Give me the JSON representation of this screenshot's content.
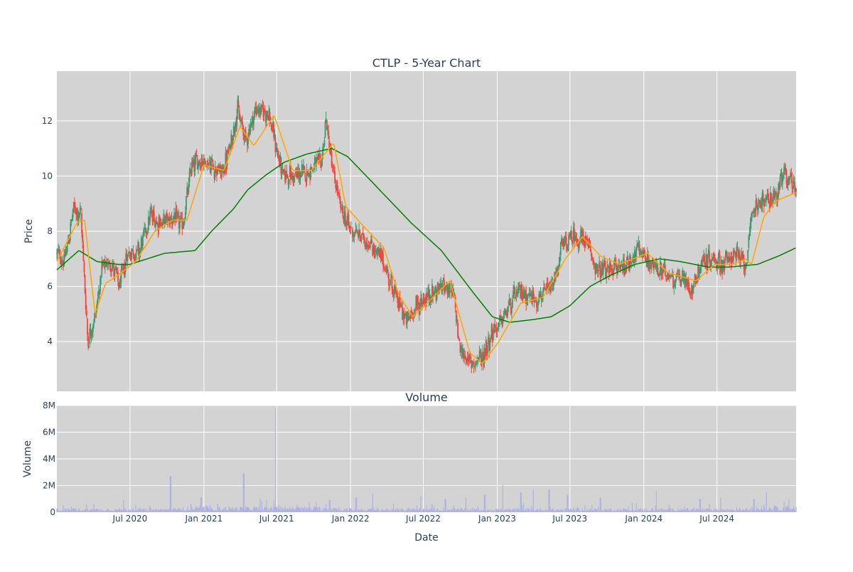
{
  "chart_data": [
    {
      "type": "candlestick",
      "title": "CTLP - 5-Year Chart",
      "ylabel": "Price",
      "ylim": [
        2.2,
        13.8
      ],
      "yticks": [
        4,
        6,
        8,
        10,
        12
      ],
      "x_range": [
        "2020-01-01",
        "2025-01-14"
      ],
      "xtick_dates": [
        "2020-07-01",
        "2021-01-01",
        "2021-07-01",
        "2022-01-01",
        "2022-07-01",
        "2023-01-01",
        "2023-07-01",
        "2024-01-01",
        "2024-07-01"
      ],
      "grid": true,
      "plot_bgcolor": "#d3d3d3",
      "colors": {
        "increasing": "#3d9970",
        "decreasing": "#ff4136",
        "ma_short": "#ffa500",
        "ma_long": "#008000"
      },
      "series_keypoints": [
        [
          "2020-01-01",
          7.2
        ],
        [
          "2020-01-20",
          6.9
        ],
        [
          "2020-02-12",
          8.8
        ],
        [
          "2020-03-01",
          8.6
        ],
        [
          "2020-03-18",
          4.0
        ],
        [
          "2020-04-05",
          4.9
        ],
        [
          "2020-04-22",
          6.6
        ],
        [
          "2020-05-15",
          6.9
        ],
        [
          "2020-06-05",
          6.0
        ],
        [
          "2020-06-25",
          7.2
        ],
        [
          "2020-07-25",
          7.3
        ],
        [
          "2020-08-20",
          8.6
        ],
        [
          "2020-09-15",
          8.3
        ],
        [
          "2020-10-15",
          8.5
        ],
        [
          "2020-11-10",
          8.2
        ],
        [
          "2020-12-01",
          10.4
        ],
        [
          "2020-12-25",
          10.6
        ],
        [
          "2021-01-20",
          10.4
        ],
        [
          "2021-02-15",
          10.1
        ],
        [
          "2021-03-05",
          10.9
        ],
        [
          "2021-03-25",
          12.4
        ],
        [
          "2021-04-15",
          11.3
        ],
        [
          "2021-05-10",
          12.4
        ],
        [
          "2021-06-10",
          12.3
        ],
        [
          "2021-07-15",
          10.1
        ],
        [
          "2021-08-10",
          10.0
        ],
        [
          "2021-09-10",
          10.1
        ],
        [
          "2021-10-20",
          10.5
        ],
        [
          "2021-11-01",
          12.0
        ],
        [
          "2021-11-20",
          10.0
        ],
        [
          "2021-12-10",
          8.7
        ],
        [
          "2021-12-31",
          8.1
        ],
        [
          "2022-02-15",
          7.6
        ],
        [
          "2022-03-20",
          7.0
        ],
        [
          "2022-04-20",
          5.8
        ],
        [
          "2022-05-20",
          4.7
        ],
        [
          "2022-06-15",
          5.3
        ],
        [
          "2022-07-20",
          5.7
        ],
        [
          "2022-08-25",
          6.1
        ],
        [
          "2022-09-15",
          5.6
        ],
        [
          "2022-10-01",
          3.7
        ],
        [
          "2022-10-25",
          3.2
        ],
        [
          "2022-11-25",
          3.4
        ],
        [
          "2022-12-15",
          4.2
        ],
        [
          "2023-01-15",
          4.8
        ],
        [
          "2023-02-10",
          5.6
        ],
        [
          "2023-03-05",
          5.8
        ],
        [
          "2023-04-10",
          5.5
        ],
        [
          "2023-05-20",
          6.0
        ],
        [
          "2023-06-10",
          7.4
        ],
        [
          "2023-07-10",
          7.8
        ],
        [
          "2023-08-10",
          7.6
        ],
        [
          "2023-09-10",
          6.5
        ],
        [
          "2023-10-10",
          6.6
        ],
        [
          "2023-11-15",
          6.8
        ],
        [
          "2023-12-20",
          7.3
        ],
        [
          "2024-01-25",
          6.7
        ],
        [
          "2024-03-01",
          6.4
        ],
        [
          "2024-04-01",
          6.3
        ],
        [
          "2024-05-01",
          5.9
        ],
        [
          "2024-05-20",
          6.8
        ],
        [
          "2024-06-15",
          7.0
        ],
        [
          "2024-07-15",
          6.8
        ],
        [
          "2024-08-15",
          7.2
        ],
        [
          "2024-09-10",
          6.8
        ],
        [
          "2024-10-01",
          8.9
        ],
        [
          "2024-10-25",
          9.1
        ],
        [
          "2024-11-25",
          9.3
        ],
        [
          "2024-12-15",
          10.1
        ],
        [
          "2025-01-14",
          9.6
        ]
      ],
      "ma_short_keypoints": [
        [
          "2020-01-01",
          6.9
        ],
        [
          "2020-02-20",
          8.3
        ],
        [
          "2020-03-10",
          8.4
        ],
        [
          "2020-04-05",
          5.0
        ],
        [
          "2020-05-01",
          6.1
        ],
        [
          "2020-06-10",
          6.5
        ],
        [
          "2020-07-15",
          6.9
        ],
        [
          "2020-09-01",
          8.0
        ],
        [
          "2020-10-15",
          8.4
        ],
        [
          "2020-11-20",
          8.4
        ],
        [
          "2021-01-01",
          10.4
        ],
        [
          "2021-02-20",
          10.2
        ],
        [
          "2021-04-01",
          11.8
        ],
        [
          "2021-05-05",
          11.1
        ],
        [
          "2021-06-25",
          12.2
        ],
        [
          "2021-08-10",
          10.2
        ],
        [
          "2021-09-25",
          10.2
        ],
        [
          "2021-11-20",
          11.2
        ],
        [
          "2021-12-20",
          8.9
        ],
        [
          "2022-02-01",
          8.2
        ],
        [
          "2022-03-25",
          7.4
        ],
        [
          "2022-05-01",
          5.7
        ],
        [
          "2022-06-05",
          4.9
        ],
        [
          "2022-07-25",
          5.6
        ],
        [
          "2022-09-05",
          6.2
        ],
        [
          "2022-10-25",
          3.6
        ],
        [
          "2022-11-25",
          3.2
        ],
        [
          "2023-01-05",
          4.0
        ],
        [
          "2023-03-01",
          5.4
        ],
        [
          "2023-04-25",
          5.6
        ],
        [
          "2023-06-20",
          7.0
        ],
        [
          "2023-08-01",
          7.8
        ],
        [
          "2023-09-15",
          7.1
        ],
        [
          "2023-11-01",
          6.8
        ],
        [
          "2024-01-10",
          7.2
        ],
        [
          "2024-03-01",
          6.5
        ],
        [
          "2024-05-10",
          6.2
        ],
        [
          "2024-06-25",
          6.8
        ],
        [
          "2024-08-10",
          6.8
        ],
        [
          "2024-09-10",
          7.0
        ],
        [
          "2024-09-25",
          6.8
        ],
        [
          "2024-10-25",
          8.5
        ],
        [
          "2024-11-25",
          9.1
        ],
        [
          "2025-01-14",
          9.4
        ]
      ],
      "ma_long_keypoints": [
        [
          "2020-01-01",
          6.6
        ],
        [
          "2020-02-25",
          7.3
        ],
        [
          "2020-04-10",
          6.9
        ],
        [
          "2020-06-01",
          6.8
        ],
        [
          "2020-07-01",
          6.8
        ],
        [
          "2020-09-25",
          7.2
        ],
        [
          "2020-12-10",
          7.3
        ],
        [
          "2021-01-20",
          8.0
        ],
        [
          "2021-03-15",
          8.8
        ],
        [
          "2021-04-20",
          9.5
        ],
        [
          "2021-06-01",
          10.0
        ],
        [
          "2021-07-20",
          10.5
        ],
        [
          "2021-09-15",
          10.8
        ],
        [
          "2021-11-15",
          11.0
        ],
        [
          "2021-12-25",
          10.7
        ],
        [
          "2022-03-01",
          9.7
        ],
        [
          "2022-06-01",
          8.3
        ],
        [
          "2022-08-15",
          7.3
        ],
        [
          "2022-11-01",
          5.8
        ],
        [
          "2022-12-20",
          4.9
        ],
        [
          "2023-02-01",
          4.7
        ],
        [
          "2023-04-01",
          4.8
        ],
        [
          "2023-05-15",
          4.9
        ],
        [
          "2023-07-01",
          5.3
        ],
        [
          "2023-08-20",
          6.0
        ],
        [
          "2023-10-10",
          6.4
        ],
        [
          "2023-12-10",
          6.8
        ],
        [
          "2024-02-10",
          7.0
        ],
        [
          "2024-04-01",
          6.9
        ],
        [
          "2024-06-10",
          6.7
        ],
        [
          "2024-08-01",
          6.7
        ],
        [
          "2024-10-10",
          6.8
        ],
        [
          "2024-12-01",
          7.1
        ],
        [
          "2025-01-14",
          7.4
        ]
      ]
    },
    {
      "type": "bar",
      "title": "Volume",
      "xlabel": "Date",
      "ylabel": "Volume",
      "ylim": [
        0,
        8000000
      ],
      "yticks": [
        0,
        2000000,
        4000000,
        6000000,
        8000000
      ],
      "ytick_labels": [
        "0",
        "2M",
        "4M",
        "6M",
        "8M"
      ],
      "xtick_labels": [
        "Jul 2020",
        "Jan 2021",
        "Jul 2021",
        "Jan 2022",
        "Jul 2022",
        "Jan 2023",
        "Jul 2023",
        "Jan 2024",
        "Jul 2024"
      ],
      "grid": true,
      "bar_color": "#b0b0e8",
      "spikes": [
        [
          "2020-03-15",
          600000
        ],
        [
          "2020-06-15",
          900000
        ],
        [
          "2020-10-10",
          2700000
        ],
        [
          "2020-12-25",
          1100000
        ],
        [
          "2021-04-10",
          2900000
        ],
        [
          "2021-06-28",
          7800000
        ],
        [
          "2021-09-20",
          800000
        ],
        [
          "2021-11-10",
          900000
        ],
        [
          "2022-01-15",
          1100000
        ],
        [
          "2022-02-25",
          1400000
        ],
        [
          "2022-06-25",
          1200000
        ],
        [
          "2022-08-25",
          1000000
        ],
        [
          "2022-10-15",
          1100000
        ],
        [
          "2022-12-01",
          1300000
        ],
        [
          "2023-01-15",
          2100000
        ],
        [
          "2023-03-01",
          1500000
        ],
        [
          "2023-04-01",
          1700000
        ],
        [
          "2023-05-10",
          1700000
        ],
        [
          "2023-06-25",
          1300000
        ],
        [
          "2023-09-15",
          1100000
        ],
        [
          "2024-02-01",
          1600000
        ],
        [
          "2024-05-20",
          1000000
        ],
        [
          "2024-07-10",
          1100000
        ],
        [
          "2024-10-01",
          1000000
        ],
        [
          "2024-11-01",
          1500000
        ],
        [
          "2024-12-15",
          800000
        ]
      ]
    }
  ]
}
